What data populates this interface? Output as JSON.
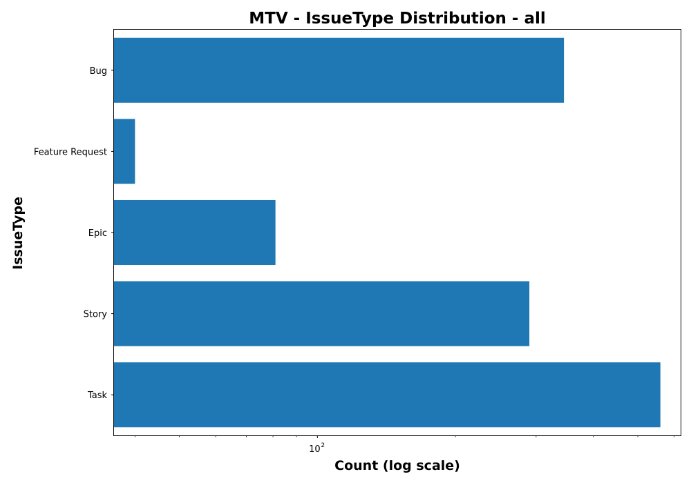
{
  "chart_data": {
    "type": "bar",
    "orientation": "horizontal",
    "title": "MTV - IssueType Distribution - all",
    "xlabel": "Count (log scale)",
    "ylabel": "IssueType",
    "x_scale": "log",
    "xlim": [
      36,
      620
    ],
    "major_tick_labels": [
      {
        "value": 100,
        "base": "10",
        "exponent": "2"
      }
    ],
    "categories": [
      "Bug",
      "Feature Request",
      "Epic",
      "Story",
      "Task"
    ],
    "values": [
      345,
      40,
      81,
      290,
      560
    ],
    "bar_color": "#1f77b4",
    "grid": false,
    "legend": false
  }
}
